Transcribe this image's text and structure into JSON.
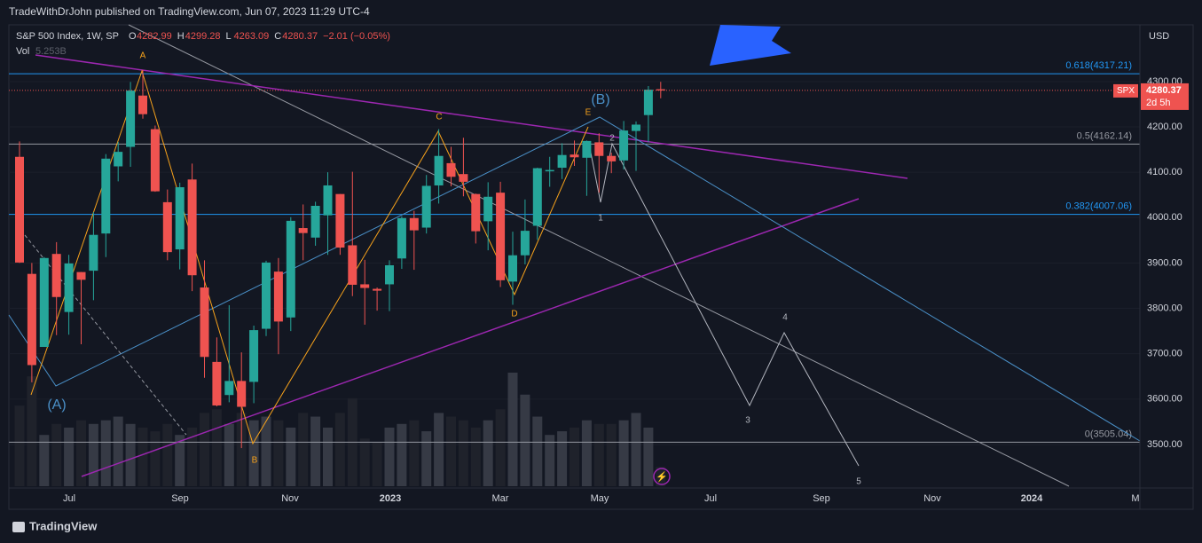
{
  "header": {
    "publisher": "TradeWithDrJohn published on TradingView.com, Jun 07, 2023 11:29 UTC-4"
  },
  "footer": {
    "brand": "TradingView"
  },
  "chart_data": {
    "type": "candlestick",
    "symbol": "S&P 500 Index, 1W, SP",
    "ohlc_letters": [
      "O",
      "H",
      "L",
      "C"
    ],
    "change": "−2.01 (−0.05%)",
    "volume_name": "Vol",
    "volume_value_label": "5.253B",
    "currency": "USD",
    "price_tag": {
      "symbol": "SPX",
      "countdown": "2d 5h"
    },
    "up_color": "#26a69a",
    "down_color": "#ef5350",
    "volume_colors": [
      "#363a45",
      "#1f222b"
    ],
    "candles": {
      "open": [
        4134,
        3876,
        3715,
        3920,
        3792,
        3880,
        3883,
        3965,
        4113,
        4156,
        4269,
        4195,
        4034,
        3930,
        4084,
        3846,
        3682,
        3609,
        3640,
        3638,
        3755,
        3881,
        3780,
        3977,
        3956,
        4005,
        4052,
        3939,
        3853,
        3843,
        3853,
        3910,
        3999,
        3978,
        4071,
        4120,
        4096,
        4052,
        3992,
        4055,
        3859,
        3917,
        3982,
        4102,
        4110,
        4139,
        4132,
        4166,
        4136,
        4126,
        4191,
        4226,
        4282.99
      ],
      "high": [
        4168,
        3900,
        3913,
        3946,
        3918,
        3880,
        4012,
        4140,
        4167,
        4299,
        4325,
        4203,
        4062,
        4077,
        4119,
        3906,
        3736,
        3807,
        3703,
        3762,
        3905,
        3911,
        4001,
        4029,
        4035,
        4100,
        4052,
        4101,
        3907,
        3846,
        3906,
        4003,
        4015,
        4094,
        4195,
        4156,
        4176,
        4053,
        4078,
        4079,
        3969,
        4040,
        4110,
        4134,
        4164,
        4170,
        4170,
        4186,
        4143,
        4213,
        4212,
        4290,
        4299.28
      ],
      "low": [
        3900,
        3637,
        3715,
        3741,
        3742,
        3721,
        3818,
        3913,
        4080,
        4112,
        4218,
        4057,
        3906,
        3886,
        3838,
        3647,
        3584,
        3593,
        3492,
        3591,
        3739,
        3699,
        3750,
        3906,
        3938,
        3918,
        3918,
        3827,
        3764,
        3795,
        3794,
        3887,
        3885,
        3965,
        4031,
        4069,
        4047,
        3943,
        3928,
        3847,
        3808,
        3897,
        3951,
        4068,
        4085,
        4114,
        4048,
        4055,
        4098,
        4106,
        4103,
        4166,
        4263.09
      ],
      "close": [
        3901,
        3675,
        3911,
        3825,
        3899,
        3863,
        3962,
        4130,
        4145,
        4280,
        4228,
        4058,
        3924,
        4067,
        3873,
        3693,
        3586,
        3640,
        3583,
        3752,
        3901,
        3771,
        3993,
        3966,
        4026,
        4071,
        3934,
        3852,
        3845,
        3839,
        3895,
        3999,
        3972,
        4070,
        4136,
        4090,
        4079,
        3970,
        4046,
        3862,
        3917,
        3971,
        4109,
        4105,
        4138,
        4133,
        4169,
        4136,
        4124,
        4192,
        4205,
        4282,
        4280.37
      ]
    },
    "volume": [
      22,
      30,
      14,
      17,
      16,
      18,
      17,
      18,
      19,
      17,
      16,
      15,
      17,
      14,
      16,
      20,
      21,
      17,
      20,
      18,
      19,
      18,
      16,
      20,
      19,
      16,
      20,
      24,
      13,
      12,
      16,
      17,
      18,
      15,
      20,
      19,
      18,
      16,
      18,
      21,
      31,
      25,
      19,
      14,
      15,
      16,
      18,
      17,
      17,
      18,
      20,
      16,
      5.253
    ],
    "ylim": [
      3408,
      4421
    ],
    "yticks": [
      {
        "value": 3500,
        "label": "3500.00"
      },
      {
        "value": 3600,
        "label": "3600.00"
      },
      {
        "value": 3700,
        "label": "3700.00"
      },
      {
        "value": 3800,
        "label": "3800.00"
      },
      {
        "value": 3900,
        "label": "3900.00"
      },
      {
        "value": 4000,
        "label": "4000.00"
      },
      {
        "value": 4100,
        "label": "4100.00"
      },
      {
        "value": 4200,
        "label": "4200.00"
      },
      {
        "value": 4300,
        "label": "4300.00"
      }
    ],
    "xticks": [
      "Jul",
      "Sep",
      "Nov",
      "2023",
      "Mar",
      "May",
      "Jul",
      "Sep",
      "Nov",
      "2024",
      "M"
    ],
    "grid": true,
    "fib_levels": [
      {
        "value": 4317.21,
        "label": "0.618(4317.21)",
        "color": "#2196f3"
      },
      {
        "value": 4162.14,
        "label": "0.5(4162.14)",
        "color": "#9598a1"
      },
      {
        "value": 4007.06,
        "label": "0.382(4007.06)",
        "color": "#2196f3"
      },
      {
        "value": 3505.04,
        "label": "0(3505.04)",
        "color": "#9598a1"
      }
    ],
    "annotations": [
      "A",
      "B",
      "C",
      "D",
      "E",
      "(A)",
      "(B)",
      "1",
      "2",
      "3",
      "4",
      "5"
    ]
  }
}
